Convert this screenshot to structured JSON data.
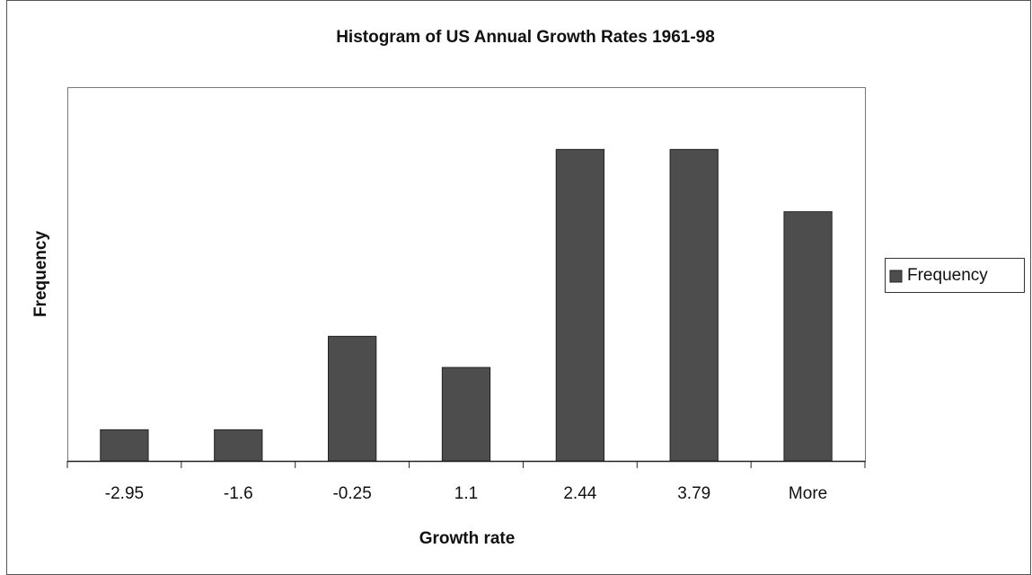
{
  "chart_data": {
    "type": "bar",
    "title": "Histogram of US Annual Growth Rates 1961-98",
    "x_label": "Growth rate",
    "y_label": "Frequency",
    "categories": [
      "-2.95",
      "-1.6",
      "-0.25",
      "1.1",
      "2.44",
      "3.79",
      "More"
    ],
    "series": [
      {
        "name": "Frequency",
        "color": "#4d4d4d",
        "values": [
          1,
          1,
          4,
          3,
          10,
          10,
          8
        ]
      }
    ],
    "ylim": [
      0,
      12
    ],
    "legend": "right"
  }
}
